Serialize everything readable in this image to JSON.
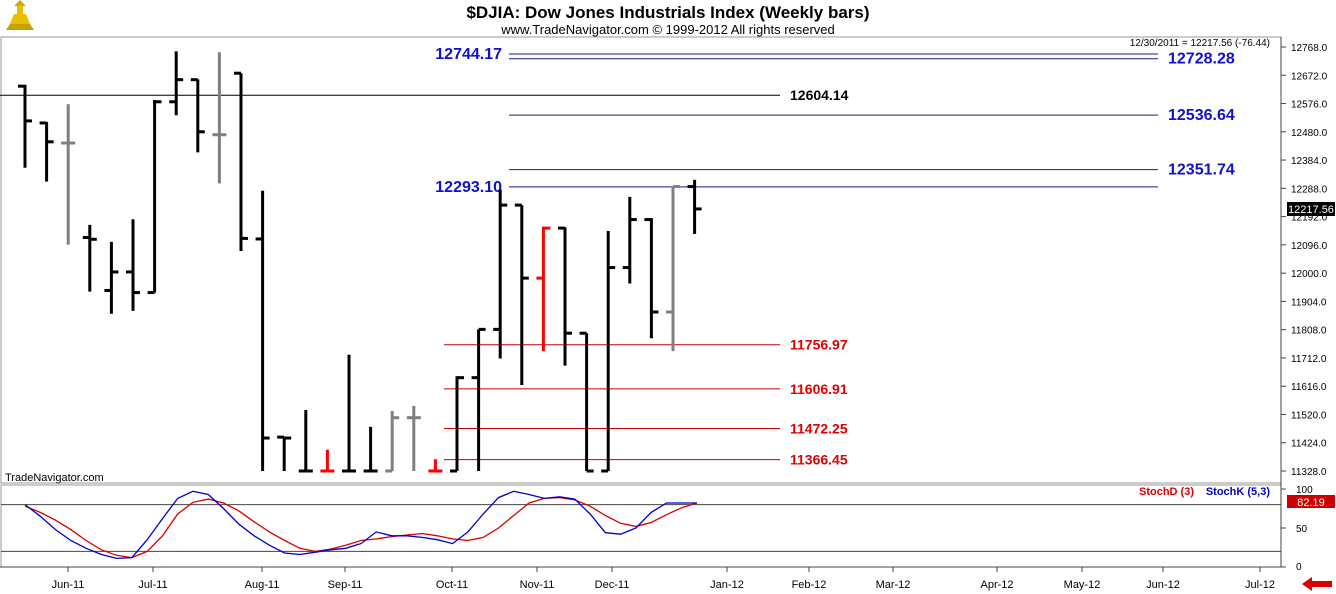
{
  "header": {
    "title": "$DJIA:  Dow Jones Industrials Index  (Weekly bars)",
    "copyright": "www.TradeNavigator.com © 1999-2012 All rights reserved",
    "last_info": "12/30/2011 = 12217.56 (-76.44)",
    "watermark": "TradeNavigator.com"
  },
  "colors": {
    "up": "#000000",
    "gray": "#808080",
    "red": "#ff0000",
    "blue_label": "#1010d0",
    "red_label": "#e00000",
    "stochD": "#dd0000",
    "stochK": "#0000cc",
    "price_tag_bg": "#000000",
    "stoch_tag_bg": "#cc0000"
  },
  "icons": {
    "logo": "trade-navigator-logo-icon",
    "scroll": "red-arrow-left-icon"
  },
  "chart_data": [
    {
      "type": "ohlc",
      "title": "$DJIA:  Dow Jones Industrials Index  (Weekly bars)",
      "ylim": [
        11328,
        12768
      ],
      "y_ticks": [
        "12768.0",
        "12672.0",
        "12576.0",
        "12480.0",
        "12384.0",
        "12288.0",
        "12192.0",
        "12096.0",
        "12000.0",
        "11904.0",
        "11808.0",
        "11712.0",
        "11616.0",
        "11520.0",
        "11424.0",
        "11328.0"
      ],
      "x_ticks": [
        "Jun-11",
        "Jul-11",
        "Aug-11",
        "Sep-11",
        "Oct-11",
        "Nov-11",
        "Dec-11",
        "Jan-12",
        "Feb-12",
        "Mar-12",
        "Apr-12",
        "May-12",
        "Jun-12",
        "Jul-12"
      ],
      "last_price_tag": "12217.56",
      "bars": [
        {
          "w": 0,
          "o": 12635,
          "h": 12640,
          "l": 12358,
          "c": 12517,
          "col": "up"
        },
        {
          "w": 1,
          "o": 12510,
          "h": 12513,
          "l": 12311,
          "c": 12446,
          "col": "up"
        },
        {
          "w": 2,
          "o": 12442,
          "h": 12574,
          "l": 12097,
          "c": 12442,
          "col": "gray"
        },
        {
          "w": 3,
          "o": 12121,
          "h": 12164,
          "l": 11937,
          "c": 12115,
          "col": "up"
        },
        {
          "w": 4,
          "o": 11941,
          "h": 12106,
          "l": 11862,
          "c": 12004,
          "col": "up"
        },
        {
          "w": 5,
          "o": 12004,
          "h": 12183,
          "l": 11872,
          "c": 11934,
          "col": "up"
        },
        {
          "w": 6,
          "o": 11934,
          "h": 12588,
          "l": 11934,
          "c": 12582,
          "col": "up"
        },
        {
          "w": 7,
          "o": 12582,
          "h": 12753,
          "l": 12536,
          "c": 12657,
          "col": "up"
        },
        {
          "w": 8,
          "o": 12657,
          "h": 12658,
          "l": 12410,
          "c": 12480,
          "col": "up"
        },
        {
          "w": 9,
          "o": 12470,
          "h": 12750,
          "l": 12305,
          "c": 12470,
          "col": "gray"
        },
        {
          "w": 10,
          "o": 12679,
          "h": 12679,
          "l": 12075,
          "c": 12118,
          "col": "up"
        },
        {
          "w": 11,
          "o": 12116,
          "h": 12280,
          "l": 11328,
          "c": 11440,
          "col": "up"
        },
        {
          "w": 12,
          "o": 11443,
          "h": 11440,
          "l": 11328,
          "c": 11440,
          "col": "up"
        },
        {
          "w": 13,
          "o": 11328,
          "h": 11535,
          "l": 11328,
          "c": 11328,
          "col": "up"
        },
        {
          "w": 14,
          "o": 11328,
          "h": 11400,
          "l": 11328,
          "c": 11328,
          "col": "red"
        },
        {
          "w": 15,
          "o": 11328,
          "h": 11723,
          "l": 11328,
          "c": 11328,
          "col": "up"
        },
        {
          "w": 16,
          "o": 11328,
          "h": 11478,
          "l": 11328,
          "c": 11328,
          "col": "up"
        },
        {
          "w": 17,
          "o": 11328,
          "h": 11532,
          "l": 11328,
          "c": 11509,
          "col": "gray"
        },
        {
          "w": 18,
          "o": 11509,
          "h": 11549,
          "l": 11328,
          "c": 11509,
          "col": "gray"
        },
        {
          "w": 19,
          "o": 11328,
          "h": 11368,
          "l": 11328,
          "c": 11328,
          "col": "red"
        },
        {
          "w": 20,
          "o": 11328,
          "h": 11650,
          "l": 11328,
          "c": 11645,
          "col": "up"
        },
        {
          "w": 21,
          "o": 11645,
          "h": 11809,
          "l": 11328,
          "c": 11809,
          "col": "up"
        },
        {
          "w": 22,
          "o": 11809,
          "h": 12284,
          "l": 11710,
          "c": 12231,
          "col": "up"
        },
        {
          "w": 23,
          "o": 12231,
          "h": 12231,
          "l": 11620,
          "c": 11983,
          "col": "up"
        },
        {
          "w": 24,
          "o": 11983,
          "h": 12158,
          "l": 11735,
          "c": 12153,
          "col": "red"
        },
        {
          "w": 25,
          "o": 12153,
          "h": 12156,
          "l": 11686,
          "c": 11796,
          "col": "up"
        },
        {
          "w": 26,
          "o": 11796,
          "h": 11796,
          "l": 11328,
          "c": 11328,
          "col": "up"
        },
        {
          "w": 27,
          "o": 11328,
          "h": 12143,
          "l": 11328,
          "c": 12019,
          "col": "up"
        },
        {
          "w": 28,
          "o": 12019,
          "h": 12259,
          "l": 11965,
          "c": 12182,
          "col": "up"
        },
        {
          "w": 29,
          "o": 12182,
          "h": 12187,
          "l": 11779,
          "c": 11868,
          "col": "up"
        },
        {
          "w": 30,
          "o": 11868,
          "h": 12293,
          "l": 11735,
          "c": 12294,
          "col": "gray"
        },
        {
          "w": 31,
          "o": 12294,
          "h": 12317,
          "l": 12133,
          "c": 12218,
          "col": "up"
        }
      ],
      "levels": [
        {
          "value": 12744.17,
          "label": "12744.17",
          "side": "left",
          "color": "blue"
        },
        {
          "value": 12728.28,
          "label": "12728.28",
          "side": "right",
          "color": "blue"
        },
        {
          "value": 12604.14,
          "label": "12604.14",
          "side": "mid",
          "color": "black"
        },
        {
          "value": 12536.64,
          "label": "12536.64",
          "side": "right",
          "color": "blue"
        },
        {
          "value": 12351.74,
          "label": "12351.74",
          "side": "right",
          "color": "blue"
        },
        {
          "value": 12293.1,
          "label": "12293.10",
          "side": "left",
          "color": "blue"
        },
        {
          "value": 11756.97,
          "label": "11756.97",
          "side": "mid",
          "color": "red"
        },
        {
          "value": 11606.91,
          "label": "11606.91",
          "side": "mid",
          "color": "red"
        },
        {
          "value": 11472.25,
          "label": "11472.25",
          "side": "mid",
          "color": "red"
        },
        {
          "value": 11366.45,
          "label": "11366.45",
          "side": "mid",
          "color": "red"
        }
      ]
    },
    {
      "type": "line",
      "ylim": [
        0,
        100
      ],
      "y_ticks": [
        "100",
        "50",
        "0"
      ],
      "last_value_tag": "82.19",
      "series": [
        {
          "name": "StochD (3)",
          "color": "stochD",
          "values": [
            78,
            70,
            60,
            48,
            34,
            22,
            15,
            12,
            20,
            40,
            68,
            83,
            87,
            82,
            72,
            58,
            45,
            34,
            24,
            20,
            23,
            28,
            34,
            36,
            39,
            41,
            43,
            40,
            36,
            34,
            38,
            50,
            66,
            82,
            88,
            89,
            86,
            78,
            66,
            56,
            52,
            57,
            67,
            76,
            82
          ]
        },
        {
          "name": "StochK (5,3)",
          "color": "stochK",
          "values": [
            80,
            65,
            48,
            34,
            24,
            16,
            11,
            12,
            35,
            62,
            88,
            97,
            93,
            75,
            55,
            40,
            28,
            18,
            16,
            19,
            22,
            24,
            30,
            45,
            40,
            40,
            38,
            35,
            30,
            45,
            68,
            89,
            97,
            93,
            88,
            90,
            87,
            68,
            44,
            42,
            50,
            70,
            82,
            82,
            82
          ]
        }
      ],
      "ref_lines": [
        80,
        20
      ]
    }
  ]
}
